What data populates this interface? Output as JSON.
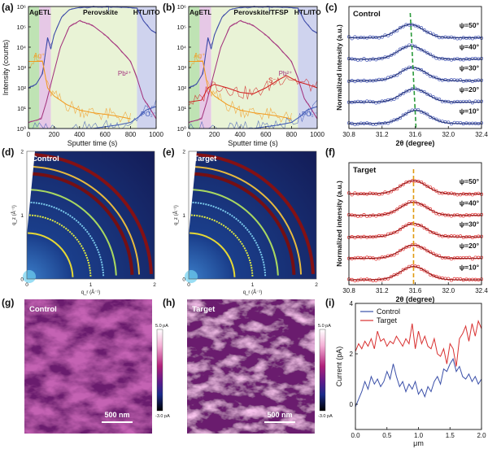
{
  "panel_labels": {
    "a": "(a)",
    "b": "(b)",
    "c": "(c)",
    "d": "(d)",
    "e": "(e)",
    "f": "(f)",
    "g": "(g)",
    "h": "(h)",
    "i": "(i)"
  },
  "chart_data": [
    {
      "id": "a",
      "type": "line",
      "xlabel": "Sputter time (s)",
      "ylabel": "Intensity (counts)",
      "xlim": [
        0,
        1000
      ],
      "ylim_log": [
        1,
        1000000
      ],
      "yscale": "log",
      "xticks": [
        "0",
        "200",
        "400",
        "600",
        "800",
        "1000"
      ],
      "yticks": [
        "10^0",
        "10^1",
        "10^2",
        "10^3",
        "10^4",
        "10^5",
        "10^6"
      ],
      "regions": [
        {
          "name": "Ag",
          "range": [
            0,
            85
          ],
          "color": "#bfe3b4"
        },
        {
          "name": "ETL",
          "range": [
            85,
            175
          ],
          "color": "#e6c8e6"
        },
        {
          "name": "Perovskite",
          "range": [
            175,
            850
          ],
          "color": "#e9f3d6"
        },
        {
          "name": "HTL/ITO",
          "range": [
            850,
            1000
          ],
          "color": "#cfd3ee"
        }
      ],
      "series": [
        {
          "name": "I-",
          "label": "I⁻",
          "color": "#3b49a8",
          "x": [
            0,
            60,
            110,
            150,
            175,
            200,
            260,
            320,
            400,
            500,
            650,
            780,
            850,
            900,
            960,
            1000
          ],
          "y": [
            100,
            150,
            500,
            30000,
            8000,
            40000,
            300000,
            700000,
            900000,
            950000,
            950000,
            900000,
            850000,
            200000,
            70000,
            50000
          ]
        },
        {
          "name": "Pb2+",
          "label": "Pb²⁺",
          "color": "#a4357e",
          "x": [
            0,
            100,
            140,
            180,
            250,
            320,
            400,
            500,
            600,
            700,
            800,
            850,
            900,
            950,
            1000
          ],
          "y": [
            2,
            3,
            20,
            200,
            10000,
            100000,
            200000,
            120000,
            40000,
            10000,
            2000,
            300,
            30,
            10,
            3
          ]
        },
        {
          "name": "Ag+",
          "label": "Ag⁺",
          "color": "#f29a1e",
          "x": [
            0,
            60,
            110,
            150,
            200,
            300,
            400,
            500,
            600,
            700,
            800
          ],
          "y": [
            2000,
            2000,
            2000,
            100,
            40,
            15,
            8,
            6,
            5,
            4,
            3
          ]
        },
        {
          "name": "PO2-",
          "label": "PO₂⁻",
          "color": "#3c56b5",
          "x": [
            0,
            150,
            300,
            500,
            700,
            800,
            870,
            920,
            960,
            1000
          ],
          "y": [
            1,
            1,
            1,
            1,
            1.5,
            2,
            4,
            8,
            10,
            12
          ]
        }
      ]
    },
    {
      "id": "b",
      "type": "line",
      "xlabel": "Sputter time (s)",
      "ylabel": "",
      "xlim": [
        0,
        1000
      ],
      "ylim_log": [
        1,
        1000000
      ],
      "yscale": "log",
      "xticks": [
        "0",
        "200",
        "400",
        "600",
        "800",
        "1000"
      ],
      "yticks": [
        "10^0",
        "10^1",
        "10^2",
        "10^3",
        "10^4",
        "10^5",
        "10^6"
      ],
      "regions": [
        {
          "name": "Ag",
          "range": [
            0,
            85
          ],
          "color": "#bfe3b4"
        },
        {
          "name": "ETL",
          "range": [
            85,
            175
          ],
          "color": "#e6c8e6"
        },
        {
          "name": "Perovskite/TFSP",
          "range": [
            175,
            850
          ],
          "color": "#e9f3d6"
        },
        {
          "name": "HTL/ITO",
          "range": [
            850,
            1000
          ],
          "color": "#cfd3ee"
        }
      ],
      "series": [
        {
          "name": "I-",
          "label": "I⁻",
          "color": "#3b49a8",
          "x": [
            0,
            60,
            110,
            150,
            175,
            200,
            260,
            320,
            400,
            500,
            650,
            780,
            850,
            900,
            960,
            1000
          ],
          "y": [
            100,
            150,
            500,
            30000,
            8000,
            40000,
            300000,
            700000,
            900000,
            950000,
            950000,
            900000,
            850000,
            200000,
            70000,
            50000
          ]
        },
        {
          "name": "Pb2+",
          "label": "Pb²⁺",
          "color": "#a4357e",
          "x": [
            0,
            100,
            140,
            180,
            250,
            320,
            400,
            500,
            600,
            700,
            800,
            850,
            900,
            950,
            1000
          ],
          "y": [
            2,
            3,
            20,
            200,
            10000,
            100000,
            200000,
            120000,
            40000,
            10000,
            2000,
            300,
            30,
            10,
            3
          ]
        },
        {
          "name": "Ag+",
          "label": "Ag⁺",
          "color": "#f29a1e",
          "x": [
            0,
            60,
            110,
            150,
            200,
            300,
            400,
            500,
            600,
            700,
            800
          ],
          "y": [
            2000,
            2000,
            2000,
            100,
            40,
            15,
            8,
            6,
            5,
            4,
            3
          ]
        },
        {
          "name": "S-",
          "label": "S⁻",
          "color": "#d11e1e",
          "x": [
            0,
            100,
            150,
            200,
            300,
            400,
            500,
            600,
            700,
            760,
            850,
            920,
            1000
          ],
          "y": [
            20,
            25,
            100,
            150,
            100,
            60,
            50,
            100,
            250,
            400,
            200,
            150,
            100
          ]
        },
        {
          "name": "PO2-",
          "label": "PO₂⁻",
          "color": "#3c56b5",
          "x": [
            0,
            150,
            300,
            500,
            700,
            800,
            870,
            920,
            960,
            1000
          ],
          "y": [
            1,
            1,
            1,
            1,
            1.5,
            2,
            4,
            8,
            10,
            12
          ]
        }
      ]
    },
    {
      "id": "c",
      "type": "line",
      "title": "Control",
      "xlabel": "2θ (degree)",
      "ylabel": "Normalized intensity (a.u.)",
      "xlim": [
        30.8,
        32.4
      ],
      "xticks": [
        "30.8",
        "31.2",
        "31.6",
        "32.0",
        "32.4"
      ],
      "marker_color": "#4557b5",
      "fit_color": "#1d2b6e",
      "peak_line_color": "#2a9a3a",
      "peak_positions": [
        31.54,
        31.55,
        31.57,
        31.59,
        31.61
      ],
      "series": [
        {
          "name": "ψ=50°",
          "peak": 31.54
        },
        {
          "name": "ψ=40°",
          "peak": 31.55
        },
        {
          "name": "ψ=30°",
          "peak": 31.57
        },
        {
          "name": "ψ=20°",
          "peak": 31.59
        },
        {
          "name": "ψ=10°",
          "peak": 31.61
        }
      ]
    },
    {
      "id": "f",
      "type": "line",
      "title": "Target",
      "xlabel": "2θ (degree)",
      "ylabel": "Normalized intensity (a.u.)",
      "xlim": [
        30.8,
        32.4
      ],
      "xticks": [
        "30.8",
        "31.2",
        "31.6",
        "32.0",
        "32.4"
      ],
      "marker_color": "#e03030",
      "fit_color": "#8a1010",
      "peak_line_color": "#e09a10",
      "series": [
        {
          "name": "ψ=50°",
          "peak": 31.58
        },
        {
          "name": "ψ=40°",
          "peak": 31.58
        },
        {
          "name": "ψ=30°",
          "peak": 31.58
        },
        {
          "name": "ψ=20°",
          "peak": 31.58
        },
        {
          "name": "ψ=10°",
          "peak": 31.58
        }
      ]
    },
    {
      "id": "d",
      "type": "heatmap",
      "title": "Control",
      "xlabel": "q_r (Å⁻¹)",
      "ylabel": "q_z (Å⁻¹)",
      "xticks": [
        "0",
        "1",
        "2"
      ],
      "yticks": [
        "0",
        "1",
        "2"
      ],
      "ring_radii_q": [
        0.72,
        1.0,
        1.2,
        1.4,
        1.65,
        1.76,
        1.95
      ]
    },
    {
      "id": "e",
      "type": "heatmap",
      "title": "Target",
      "xlabel": "q_r (Å⁻¹)",
      "ylabel": "q_z (Å⁻¹)",
      "xticks": [
        "0",
        "1",
        "2"
      ],
      "yticks": [
        "0",
        "1",
        "2"
      ],
      "ring_radii_q": [
        0.72,
        1.0,
        1.2,
        1.4,
        1.65,
        1.76,
        1.95
      ]
    },
    {
      "id": "g",
      "type": "heatmap",
      "title": "Control",
      "scale_bar": "500 nm",
      "colorbar": {
        "max": "5.0 pA",
        "min": "-3.0 pA"
      }
    },
    {
      "id": "h",
      "type": "heatmap",
      "title": "Target",
      "scale_bar": "500 nm",
      "colorbar": {
        "max": "5.0 pA",
        "min": "-3.0 pA"
      }
    },
    {
      "id": "i",
      "type": "line",
      "xlabel": "μm",
      "ylabel": "Current (pA)",
      "xlim": [
        0,
        2
      ],
      "ylim": [
        -1,
        4
      ],
      "xticks": [
        "0.0",
        "0.5",
        "1.0",
        "1.5",
        "2.0"
      ],
      "yticks": [
        "0",
        "2",
        "4"
      ],
      "legend_position": "top-left",
      "series": [
        {
          "name": "Control",
          "color": "#3a4fa8",
          "x": [
            0,
            0.05,
            0.1,
            0.15,
            0.2,
            0.25,
            0.3,
            0.35,
            0.4,
            0.45,
            0.5,
            0.55,
            0.6,
            0.65,
            0.7,
            0.75,
            0.8,
            0.85,
            0.9,
            0.95,
            1.0,
            1.05,
            1.1,
            1.15,
            1.2,
            1.25,
            1.3,
            1.35,
            1.4,
            1.45,
            1.5,
            1.55,
            1.6,
            1.65,
            1.7,
            1.75,
            1.8,
            1.85,
            1.9,
            1.95,
            2.0
          ],
          "y": [
            -0.1,
            0.2,
            0.5,
            0.9,
            0.6,
            1.1,
            0.8,
            1.0,
            0.7,
            0.9,
            1.3,
            1.0,
            1.6,
            1.1,
            0.7,
            0.9,
            0.5,
            0.8,
            0.6,
            0.9,
            0.4,
            0.6,
            0.3,
            0.7,
            0.5,
            0.9,
            1.1,
            0.8,
            1.4,
            1.3,
            1.6,
            1.8,
            1.3,
            1.5,
            1.1,
            1.0,
            1.2,
            0.9,
            1.1,
            0.8,
            1.0
          ]
        },
        {
          "name": "Target",
          "color": "#d83030",
          "x": [
            0,
            0.05,
            0.1,
            0.15,
            0.2,
            0.25,
            0.3,
            0.35,
            0.4,
            0.45,
            0.5,
            0.55,
            0.6,
            0.65,
            0.7,
            0.75,
            0.8,
            0.85,
            0.9,
            0.95,
            1.0,
            1.05,
            1.1,
            1.15,
            1.2,
            1.25,
            1.3,
            1.35,
            1.4,
            1.45,
            1.5,
            1.55,
            1.6,
            1.65,
            1.7,
            1.75,
            1.8,
            1.85,
            1.9,
            1.95,
            2.0
          ],
          "y": [
            2.1,
            2.4,
            2.2,
            2.5,
            2.3,
            2.6,
            2.2,
            2.9,
            2.5,
            2.6,
            2.3,
            2.5,
            2.4,
            2.7,
            2.5,
            2.3,
            2.6,
            2.4,
            3.2,
            2.2,
            2.9,
            2.4,
            2.7,
            2.3,
            2.2,
            2.6,
            2.0,
            1.9,
            2.2,
            1.6,
            2.4,
            2.2,
            1.5,
            2.6,
            2.8,
            3.1,
            2.5,
            3.2,
            2.7,
            3.3,
            3.0
          ]
        }
      ]
    }
  ]
}
